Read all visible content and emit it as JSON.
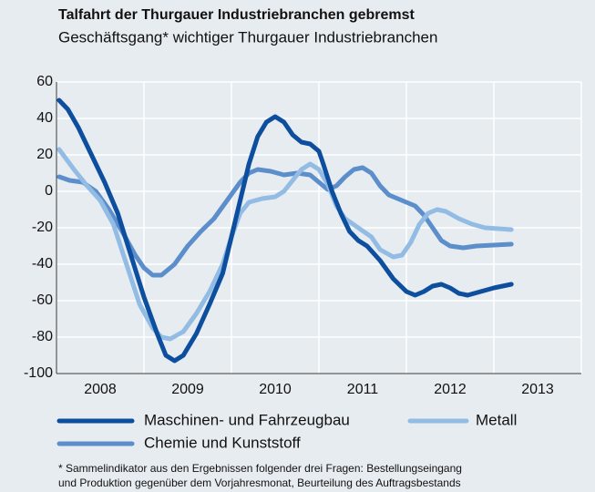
{
  "chart_data": {
    "type": "line",
    "title": "Talfahrt der Thurgauer Industriebranchen gebremst",
    "subtitle": "Geschäftsgang* wichtiger Thurgauer Industriebranchen",
    "xlim": [
      2008,
      2014
    ],
    "xticks": [
      {
        "value": 2008.5,
        "label": "2008"
      },
      {
        "value": 2009.5,
        "label": "2009"
      },
      {
        "value": 2010.5,
        "label": "2010"
      },
      {
        "value": 2011.5,
        "label": "2011"
      },
      {
        "value": 2012.5,
        "label": "2012"
      },
      {
        "value": 2013.5,
        "label": "2013"
      }
    ],
    "xgrid": [
      2008,
      2009,
      2010,
      2011,
      2012,
      2013,
      2014
    ],
    "ylim": [
      -100,
      60
    ],
    "yticks": [
      -100,
      -80,
      -60,
      -40,
      -20,
      0,
      20,
      40,
      60
    ],
    "grid": true,
    "series": [
      {
        "name": "Maschinen- und Fahrzeugbau",
        "color": "#0d4f9e",
        "x": [
          2008.03,
          2008.13,
          2008.25,
          2008.4,
          2008.55,
          2008.7,
          2008.85,
          2009.0,
          2009.15,
          2009.25,
          2009.35,
          2009.45,
          2009.6,
          2009.75,
          2009.9,
          2010.0,
          2010.1,
          2010.2,
          2010.3,
          2010.4,
          2010.5,
          2010.6,
          2010.7,
          2010.8,
          2010.9,
          2011.0,
          2011.05,
          2011.15,
          2011.25,
          2011.35,
          2011.45,
          2011.55,
          2011.7,
          2011.85,
          2012.0,
          2012.1,
          2012.2,
          2012.3,
          2012.4,
          2012.5,
          2012.6,
          2012.7,
          2012.85,
          2013.0,
          2013.2
        ],
        "values": [
          50,
          45,
          35,
          20,
          5,
          -12,
          -35,
          -58,
          -78,
          -90,
          -93,
          -90,
          -78,
          -62,
          -45,
          -25,
          -5,
          15,
          30,
          38,
          41,
          38,
          31,
          27,
          26,
          22,
          15,
          0,
          -12,
          -22,
          -27,
          -30,
          -38,
          -48,
          -55,
          -57,
          -55,
          -52,
          -51,
          -53,
          -56,
          -57,
          -55,
          -53,
          -51
        ]
      },
      {
        "name": "Metall",
        "color": "#92bce4",
        "x": [
          2008.03,
          2008.2,
          2008.35,
          2008.5,
          2008.65,
          2008.8,
          2008.95,
          2009.1,
          2009.2,
          2009.3,
          2009.45,
          2009.6,
          2009.75,
          2009.9,
          2010.0,
          2010.1,
          2010.2,
          2010.35,
          2010.5,
          2010.6,
          2010.7,
          2010.8,
          2010.9,
          2011.0,
          2011.1,
          2011.2,
          2011.3,
          2011.45,
          2011.6,
          2011.7,
          2011.85,
          2011.95,
          2012.05,
          2012.15,
          2012.25,
          2012.35,
          2012.45,
          2012.6,
          2012.75,
          2012.9,
          2013.2
        ],
        "values": [
          23,
          12,
          3,
          -5,
          -18,
          -40,
          -62,
          -75,
          -80,
          -81,
          -77,
          -67,
          -55,
          -40,
          -25,
          -12,
          -6,
          -4,
          -3,
          0,
          6,
          12,
          15,
          12,
          4,
          -8,
          -15,
          -20,
          -25,
          -32,
          -36,
          -35,
          -28,
          -18,
          -12,
          -10,
          -11,
          -15,
          -18,
          -20,
          -21
        ]
      },
      {
        "name": "Chemie und Kunststoff",
        "color": "#5b8ecb",
        "x": [
          2008.03,
          2008.15,
          2008.3,
          2008.45,
          2008.6,
          2008.75,
          2008.9,
          2009.0,
          2009.1,
          2009.2,
          2009.35,
          2009.5,
          2009.65,
          2009.8,
          2009.95,
          2010.1,
          2010.2,
          2010.3,
          2010.45,
          2010.6,
          2010.75,
          2010.9,
          2011.0,
          2011.1,
          2011.2,
          2011.3,
          2011.4,
          2011.5,
          2011.6,
          2011.7,
          2011.8,
          2011.95,
          2012.1,
          2012.2,
          2012.3,
          2012.4,
          2012.5,
          2012.65,
          2012.8,
          2013.2
        ],
        "values": [
          8,
          6,
          5,
          0,
          -10,
          -22,
          -35,
          -42,
          -46,
          -46,
          -40,
          -30,
          -22,
          -15,
          -5,
          5,
          10,
          12,
          11,
          9,
          10,
          9,
          5,
          1,
          3,
          8,
          12,
          13,
          10,
          3,
          -2,
          -5,
          -8,
          -13,
          -20,
          -27,
          -30,
          -31,
          -30,
          -29
        ]
      }
    ],
    "note": [
      "* Sammelindikator aus den Ergebnissen folgender drei Fragen: Bestellungseingang",
      "und Produktion gegenüber dem Vorjahresmonat, Beurteilung des Auftragsbestands"
    ]
  }
}
